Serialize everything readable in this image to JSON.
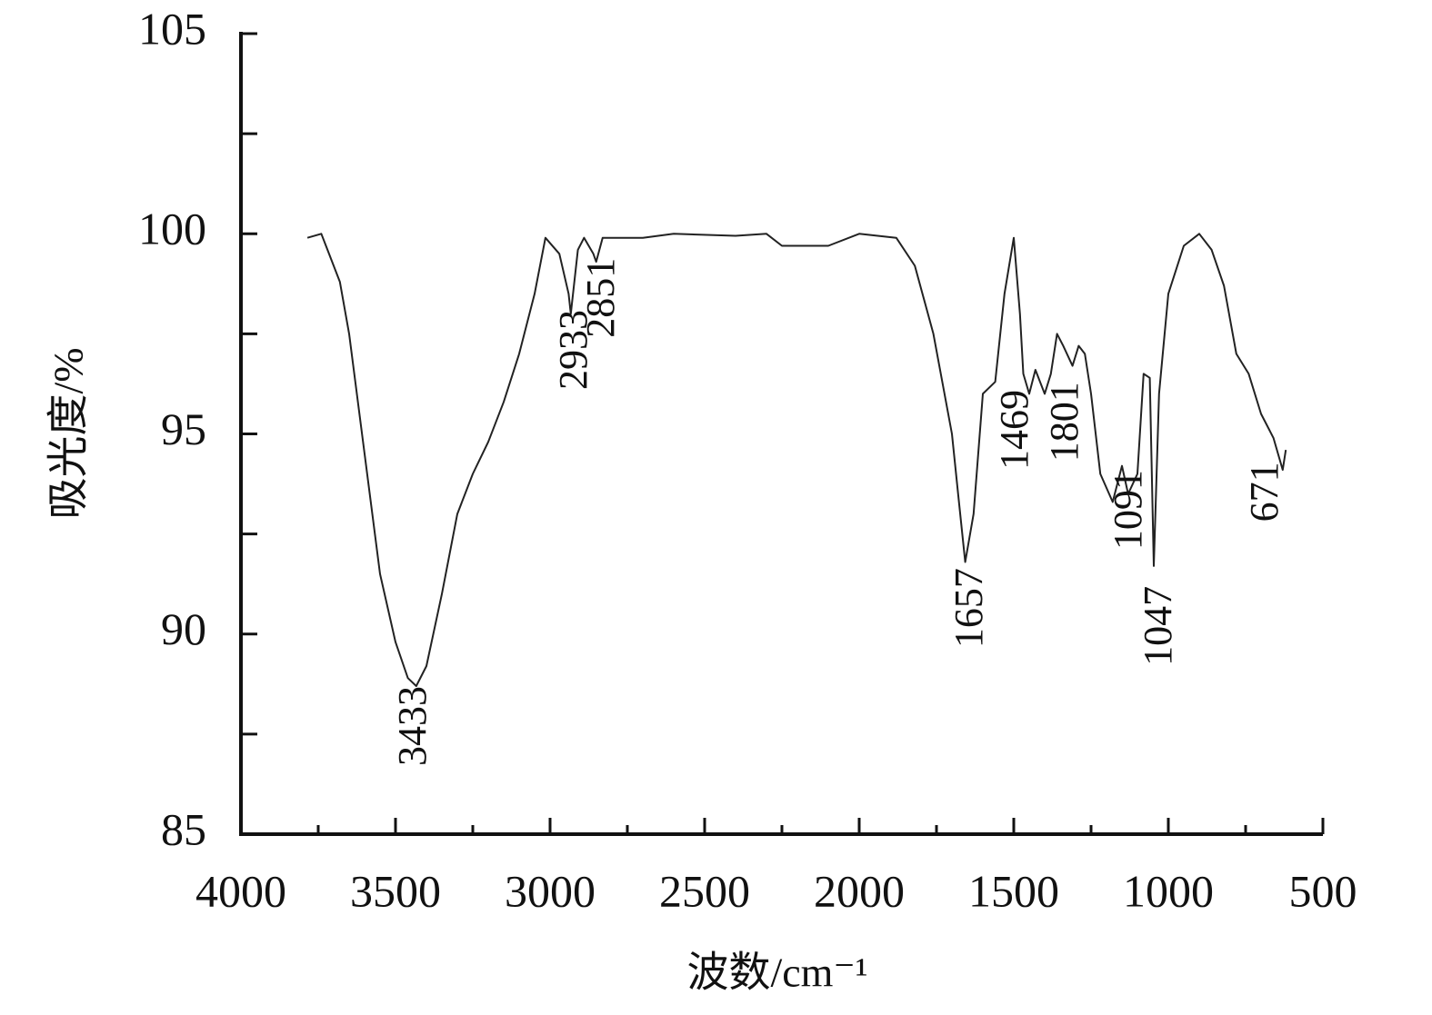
{
  "chart_data": {
    "type": "line",
    "xlabel": "波数/cm⁻¹",
    "ylabel": "吸光度/%",
    "xlim": [
      4000,
      500
    ],
    "ylim": [
      85,
      105
    ],
    "xticks": [
      4000,
      3500,
      3000,
      2500,
      2000,
      1500,
      1000,
      500
    ],
    "yticks": [
      85,
      90,
      95,
      100,
      105
    ],
    "xminor": [
      3750,
      3250,
      2750,
      2250,
      1750,
      1250,
      750
    ],
    "yminor": [
      87.5,
      92.5,
      97.5,
      102.5
    ],
    "color": "#222222",
    "x": [
      3785,
      3740,
      3720,
      3680,
      3650,
      3600,
      3550,
      3500,
      3460,
      3433,
      3400,
      3350,
      3300,
      3250,
      3200,
      3150,
      3100,
      3050,
      3015,
      2970,
      2940,
      2933,
      2910,
      2890,
      2860,
      2851,
      2830,
      2700,
      2600,
      2400,
      2300,
      2250,
      2100,
      2000,
      1880,
      1820,
      1760,
      1700,
      1680,
      1657,
      1630,
      1600,
      1560,
      1530,
      1500,
      1480,
      1469,
      1450,
      1430,
      1400,
      1380,
      1360,
      1340,
      1310,
      1290,
      1270,
      1250,
      1220,
      1180,
      1150,
      1130,
      1100,
      1080,
      1060,
      1047,
      1030,
      1000,
      950,
      900,
      860,
      820,
      780,
      740,
      700,
      660,
      630,
      620
    ],
    "values": [
      99.9,
      100.0,
      99.6,
      98.8,
      97.5,
      94.5,
      91.5,
      89.8,
      88.9,
      88.7,
      89.2,
      91.0,
      93.0,
      94.0,
      94.8,
      95.8,
      97.0,
      98.5,
      99.9,
      99.5,
      98.5,
      98.0,
      99.6,
      99.9,
      99.5,
      99.3,
      99.9,
      99.9,
      100.0,
      99.95,
      100.0,
      99.7,
      99.7,
      100.0,
      99.9,
      99.2,
      97.5,
      95.0,
      93.5,
      91.8,
      93.0,
      96.0,
      96.3,
      98.5,
      99.9,
      98.0,
      96.5,
      96.0,
      96.6,
      96.0,
      96.5,
      97.5,
      97.2,
      96.7,
      97.2,
      97.0,
      96.0,
      94.0,
      93.3,
      94.2,
      93.5,
      94.0,
      96.5,
      96.4,
      91.7,
      96.0,
      98.5,
      99.7,
      100.0,
      99.6,
      98.7,
      97.0,
      96.5,
      95.5,
      94.9,
      94.1,
      94.6
    ],
    "annotations": [
      {
        "text": "3433",
        "x": 3433,
        "y": 88.7
      },
      {
        "text": "2933",
        "x": 2912,
        "y": 98.1
      },
      {
        "text": "2851",
        "x": 2824,
        "y": 99.4
      },
      {
        "text": "1657",
        "x": 1632,
        "y": 91.65
      },
      {
        "text": "1469",
        "x": 1485,
        "y": 96.1
      },
      {
        "text": "1801",
        "x": 1324,
        "y": 96.3
      },
      {
        "text": "1091",
        "x": 1118,
        "y": 94.1
      },
      {
        "text": "1047",
        "x": 1021,
        "y": 91.2
      },
      {
        "text": "671",
        "x": 676,
        "y": 94.3
      }
    ]
  }
}
